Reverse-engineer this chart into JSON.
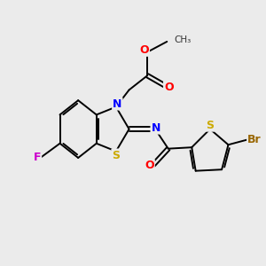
{
  "bg_color": "#ebebeb",
  "bond_color": "#000000",
  "bond_width": 1.4,
  "atoms": {
    "F": {
      "color": "#cc00cc"
    },
    "N": {
      "color": "#0000ff"
    },
    "O": {
      "color": "#ff0000"
    },
    "S": {
      "color": "#ccaa00"
    },
    "Br": {
      "color": "#996600"
    },
    "C": {
      "color": "#000000"
    }
  },
  "figsize": [
    3.0,
    3.0
  ],
  "dpi": 100
}
